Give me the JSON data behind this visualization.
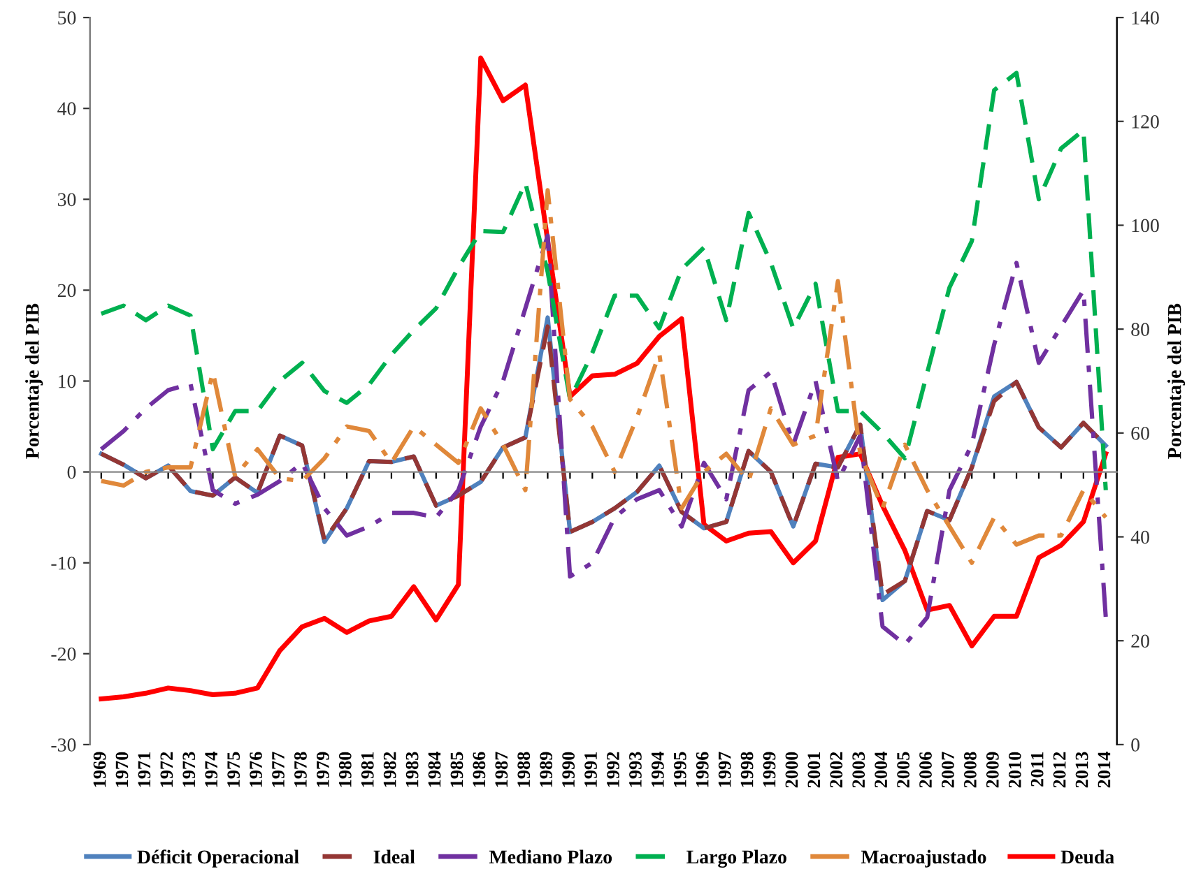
{
  "chart_data": {
    "type": "line",
    "categories": [
      "1969",
      "1970",
      "1971",
      "1972",
      "1973",
      "1974",
      "1975",
      "1976",
      "1977",
      "1978",
      "1979",
      "1980",
      "1981",
      "1982",
      "1983",
      "1984",
      "1985",
      "1986",
      "1987",
      "1988",
      "1989",
      "1990",
      "1991",
      "1992",
      "1993",
      "1994",
      "1995",
      "1996",
      "1997",
      "1998",
      "1999",
      "2000",
      "2001",
      "2002",
      "2003",
      "2004",
      "2005",
      "2006",
      "2007",
      "2008",
      "2009",
      "2010",
      "2011",
      "2012",
      "2013",
      "2014"
    ],
    "ylabel": "Porcentaje del PIB",
    "y2label": "Porcentaje del PIB",
    "ylim": [
      -30,
      50
    ],
    "yticks": [
      -30,
      -20,
      -10,
      0,
      10,
      20,
      30,
      40,
      50
    ],
    "y2lim": [
      0,
      140
    ],
    "y2ticks": [
      0,
      20,
      40,
      60,
      80,
      100,
      120,
      140
    ],
    "legend": "bottom",
    "marker": "none",
    "series": [
      {
        "name": "Déficit Operacional",
        "color": "#4f81bd",
        "line_style": "solid",
        "values": [
          2.0,
          0.8,
          -0.7,
          0.7,
          -2.1,
          -2.6,
          -0.6,
          -2.3,
          4.0,
          2.9,
          -7.7,
          -4.0,
          1.2,
          1.1,
          1.7,
          -3.7,
          -2.6,
          -1.1,
          2.7,
          3.8,
          17,
          -6.6,
          -5.5,
          -4.0,
          -2.2,
          0.7,
          -4.4,
          -6.2,
          -5.5,
          2.3,
          0,
          -6.0,
          0.9,
          0.5,
          5.2,
          -14.1,
          -12,
          -4.3,
          -5.3,
          0.5,
          8.3,
          9.9,
          4.9,
          2.7,
          5.4,
          2.9
        ]
      },
      {
        "name": "Ideal",
        "color": "#943634",
        "line_style": "dashed",
        "values": [
          2.0,
          0.8,
          -0.7,
          0.7,
          -2.1,
          -2.6,
          -0.6,
          -2.3,
          4.0,
          2.9,
          -7.5,
          -4.0,
          1.2,
          1.1,
          1.7,
          -3.7,
          -2.6,
          -1.1,
          2.7,
          3.8,
          16,
          -6.6,
          -5.5,
          -4.0,
          -2.2,
          0.7,
          -4.4,
          -6.2,
          -5.5,
          2.3,
          0,
          -6.0,
          0.9,
          0.5,
          5.2,
          -13.5,
          -12,
          -4.3,
          -5.3,
          0.5,
          7.8,
          9.9,
          4.9,
          2.7,
          5.4,
          2.9
        ]
      },
      {
        "name": "Mediano Plazo",
        "color": "#7030a0",
        "line_style": "dashdot",
        "values": [
          2.5,
          4.5,
          7,
          9,
          9.7,
          -2,
          -3.5,
          -2.5,
          -1,
          1,
          -4,
          -7,
          -6,
          -4.5,
          -4.5,
          -5,
          -2,
          5,
          10,
          18,
          26,
          -11.5,
          -10,
          -5,
          -3,
          -2,
          -6,
          1,
          -3,
          9,
          11,
          3,
          10,
          -1,
          4,
          -17,
          -19,
          -16,
          -2,
          3,
          14,
          23,
          12,
          16,
          20,
          -16
        ]
      },
      {
        "name": "Largo Plazo",
        "color": "#00b050",
        "line_style": "dashed",
        "values": [
          17.4,
          18.3,
          16.7,
          18.3,
          17.2,
          2.5,
          6.7,
          6.7,
          10,
          12.0,
          8.9,
          7.6,
          9.6,
          12.9,
          15.6,
          18.0,
          22.5,
          26.5,
          26.4,
          31.8,
          22,
          8.0,
          13.1,
          19.4,
          19.4,
          15.8,
          22.3,
          24.7,
          16.7,
          28.5,
          23,
          15.8,
          20.7,
          6.7,
          6.7,
          4.3,
          1.5,
          10.9,
          20.3,
          25.4,
          42,
          43.9,
          30,
          35.6,
          37.6,
          -2
        ]
      },
      {
        "name": "Macroajustado",
        "color": "#e0883a",
        "line_style": "dashdot",
        "values": [
          -1,
          -1.5,
          0,
          0.5,
          0.5,
          11,
          -0.5,
          2.5,
          -0.7,
          -1,
          1.5,
          5,
          4.5,
          1,
          5,
          3,
          1,
          7,
          3,
          -2,
          31,
          8,
          5,
          0,
          6,
          13,
          -4,
          0,
          2,
          -1,
          7,
          3,
          4,
          21,
          2,
          -4,
          3,
          -2,
          -6,
          -10,
          -5,
          -8,
          -7,
          -7,
          -2,
          -5
        ]
      },
      {
        "name": "Deuda",
        "color": "#ff0000",
        "line_style": "solid",
        "axis": "y2",
        "values": [
          8.8,
          9.2,
          9.9,
          10.9,
          10.4,
          9.6,
          9.9,
          10.9,
          18.1,
          22.7,
          24.3,
          21.6,
          23.8,
          24.7,
          30.4,
          24,
          30.8,
          132.2,
          124,
          127,
          97,
          67,
          71,
          71.3,
          73.4,
          78.6,
          82,
          42.4,
          39.2,
          40.7,
          41,
          35,
          39.2,
          55.3,
          56,
          46,
          37.4,
          25.9,
          26.8,
          19,
          24.7,
          24.7,
          36,
          38.4,
          42.9,
          56
        ]
      }
    ]
  }
}
